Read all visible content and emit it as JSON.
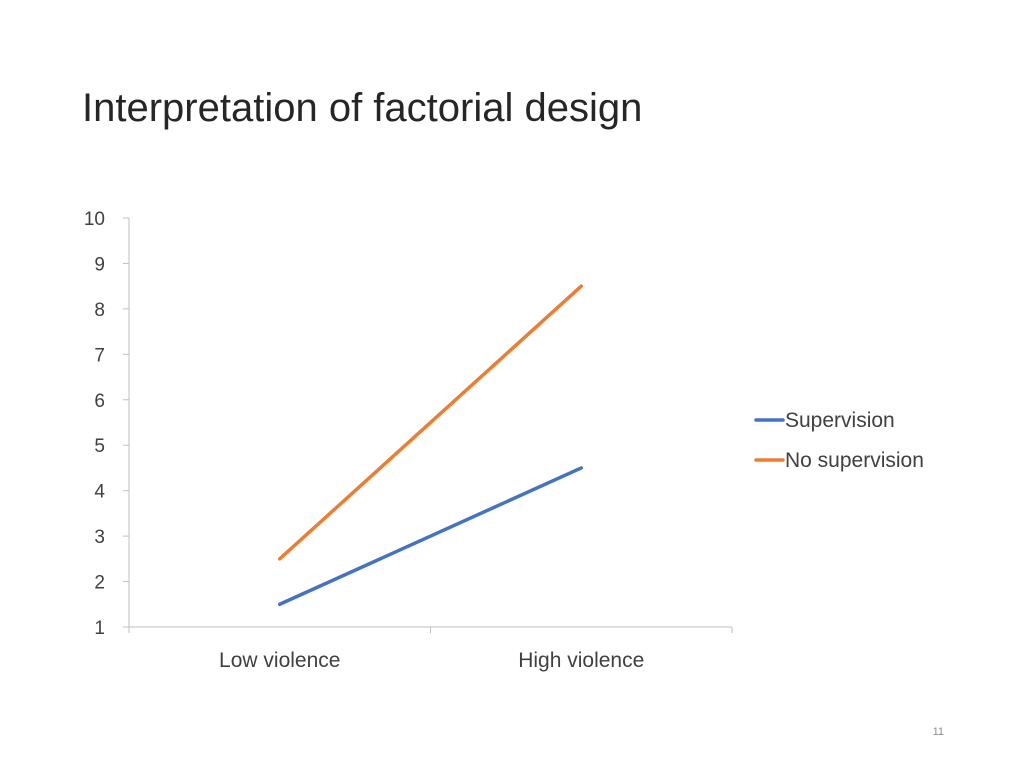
{
  "slide": {
    "title": "Interpretation of factorial design",
    "page_number": "11"
  },
  "chart_data": {
    "type": "line",
    "title": "",
    "xlabel": "",
    "ylabel": "",
    "categories": [
      "Low violence",
      "High violence"
    ],
    "series": [
      {
        "name": "Supervision",
        "values": [
          1.5,
          4.5
        ],
        "color": "#4472C4"
      },
      {
        "name": "No supervision",
        "values": [
          2.5,
          8.5
        ],
        "color": "#ED7D31"
      }
    ],
    "ylim": [
      1,
      10
    ],
    "yticks": [
      1,
      2,
      3,
      4,
      5,
      6,
      7,
      8,
      9,
      10
    ],
    "grid": false,
    "legend_position": "right"
  }
}
